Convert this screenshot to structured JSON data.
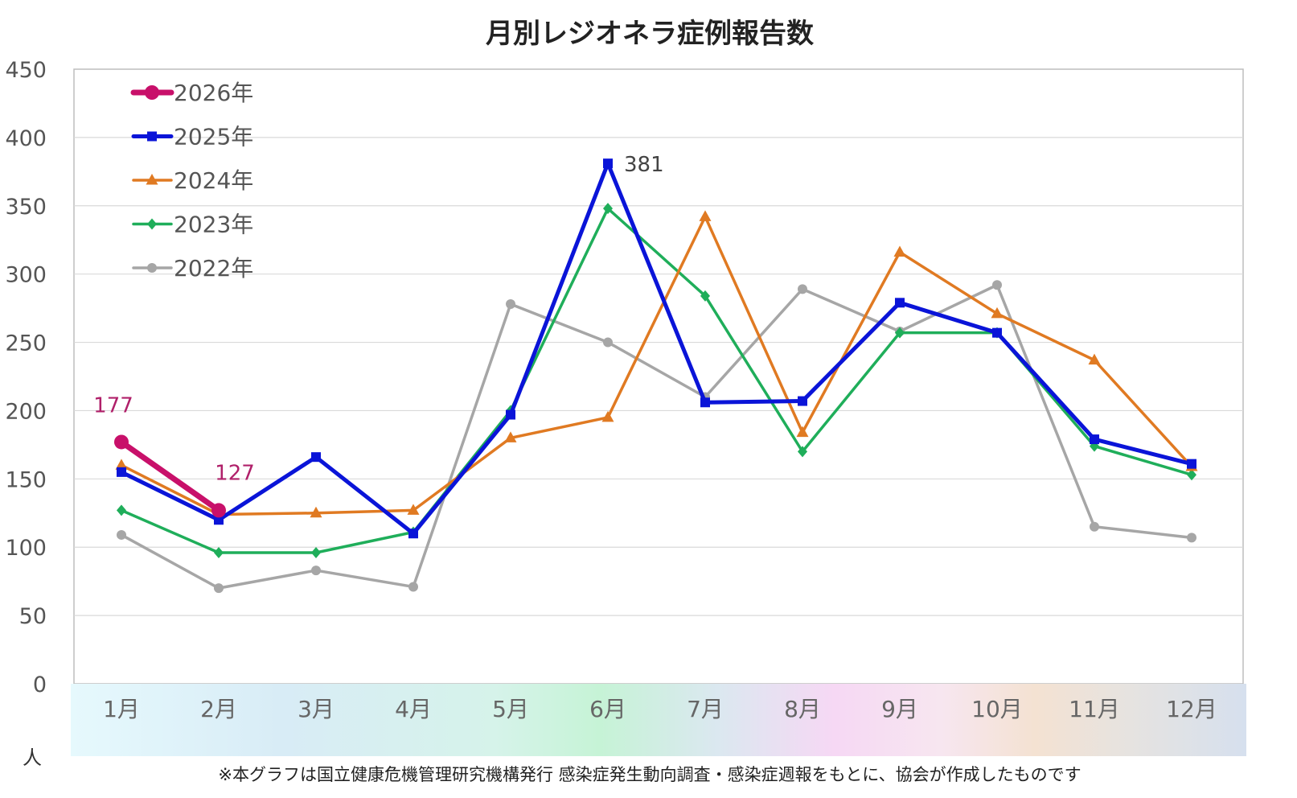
{
  "chart_data": {
    "type": "line",
    "title": "月別レジオネラ症例報告数",
    "categories": [
      "1月",
      "2月",
      "3月",
      "4月",
      "5月",
      "6月",
      "7月",
      "8月",
      "9月",
      "10月",
      "11月",
      "12月"
    ],
    "ylim": [
      0,
      450
    ],
    "yticks": [
      0,
      50,
      100,
      150,
      200,
      250,
      300,
      350,
      400,
      450
    ],
    "yunit": "人",
    "grid": true,
    "legend_position": "top-left",
    "series": [
      {
        "name": "2026年",
        "color": "#c8106a",
        "marker": "circle",
        "values": [
          177,
          127,
          null,
          null,
          null,
          null,
          null,
          null,
          null,
          null,
          null,
          null
        ]
      },
      {
        "name": "2025年",
        "color": "#0a14d8",
        "marker": "square",
        "values": [
          155,
          120,
          166,
          110,
          197,
          381,
          206,
          207,
          279,
          257,
          179,
          161
        ]
      },
      {
        "name": "2024年",
        "color": "#e07a22",
        "marker": "triangle",
        "values": [
          160,
          124,
          125,
          127,
          180,
          195,
          342,
          184,
          316,
          271,
          237,
          159
        ]
      },
      {
        "name": "2023年",
        "color": "#1fae5a",
        "marker": "diamond",
        "values": [
          127,
          96,
          96,
          111,
          200,
          348,
          284,
          170,
          257,
          257,
          174,
          153
        ]
      },
      {
        "name": "2022年",
        "color": "#a6a6a6",
        "marker": "circle-small",
        "values": [
          109,
          70,
          83,
          71,
          278,
          250,
          210,
          289,
          258,
          292,
          115,
          107
        ]
      }
    ],
    "annotations": [
      {
        "text": "177",
        "series": "2026年",
        "index": 0
      },
      {
        "text": "127",
        "series": "2026年",
        "index": 1
      },
      {
        "text": "381",
        "series": "2025年",
        "index": 5
      }
    ],
    "note": "※本グラフは国立健康危機管理研究機構発行 感染症発生動向調査・感染症週報をもとに、協会が作成したものです"
  }
}
